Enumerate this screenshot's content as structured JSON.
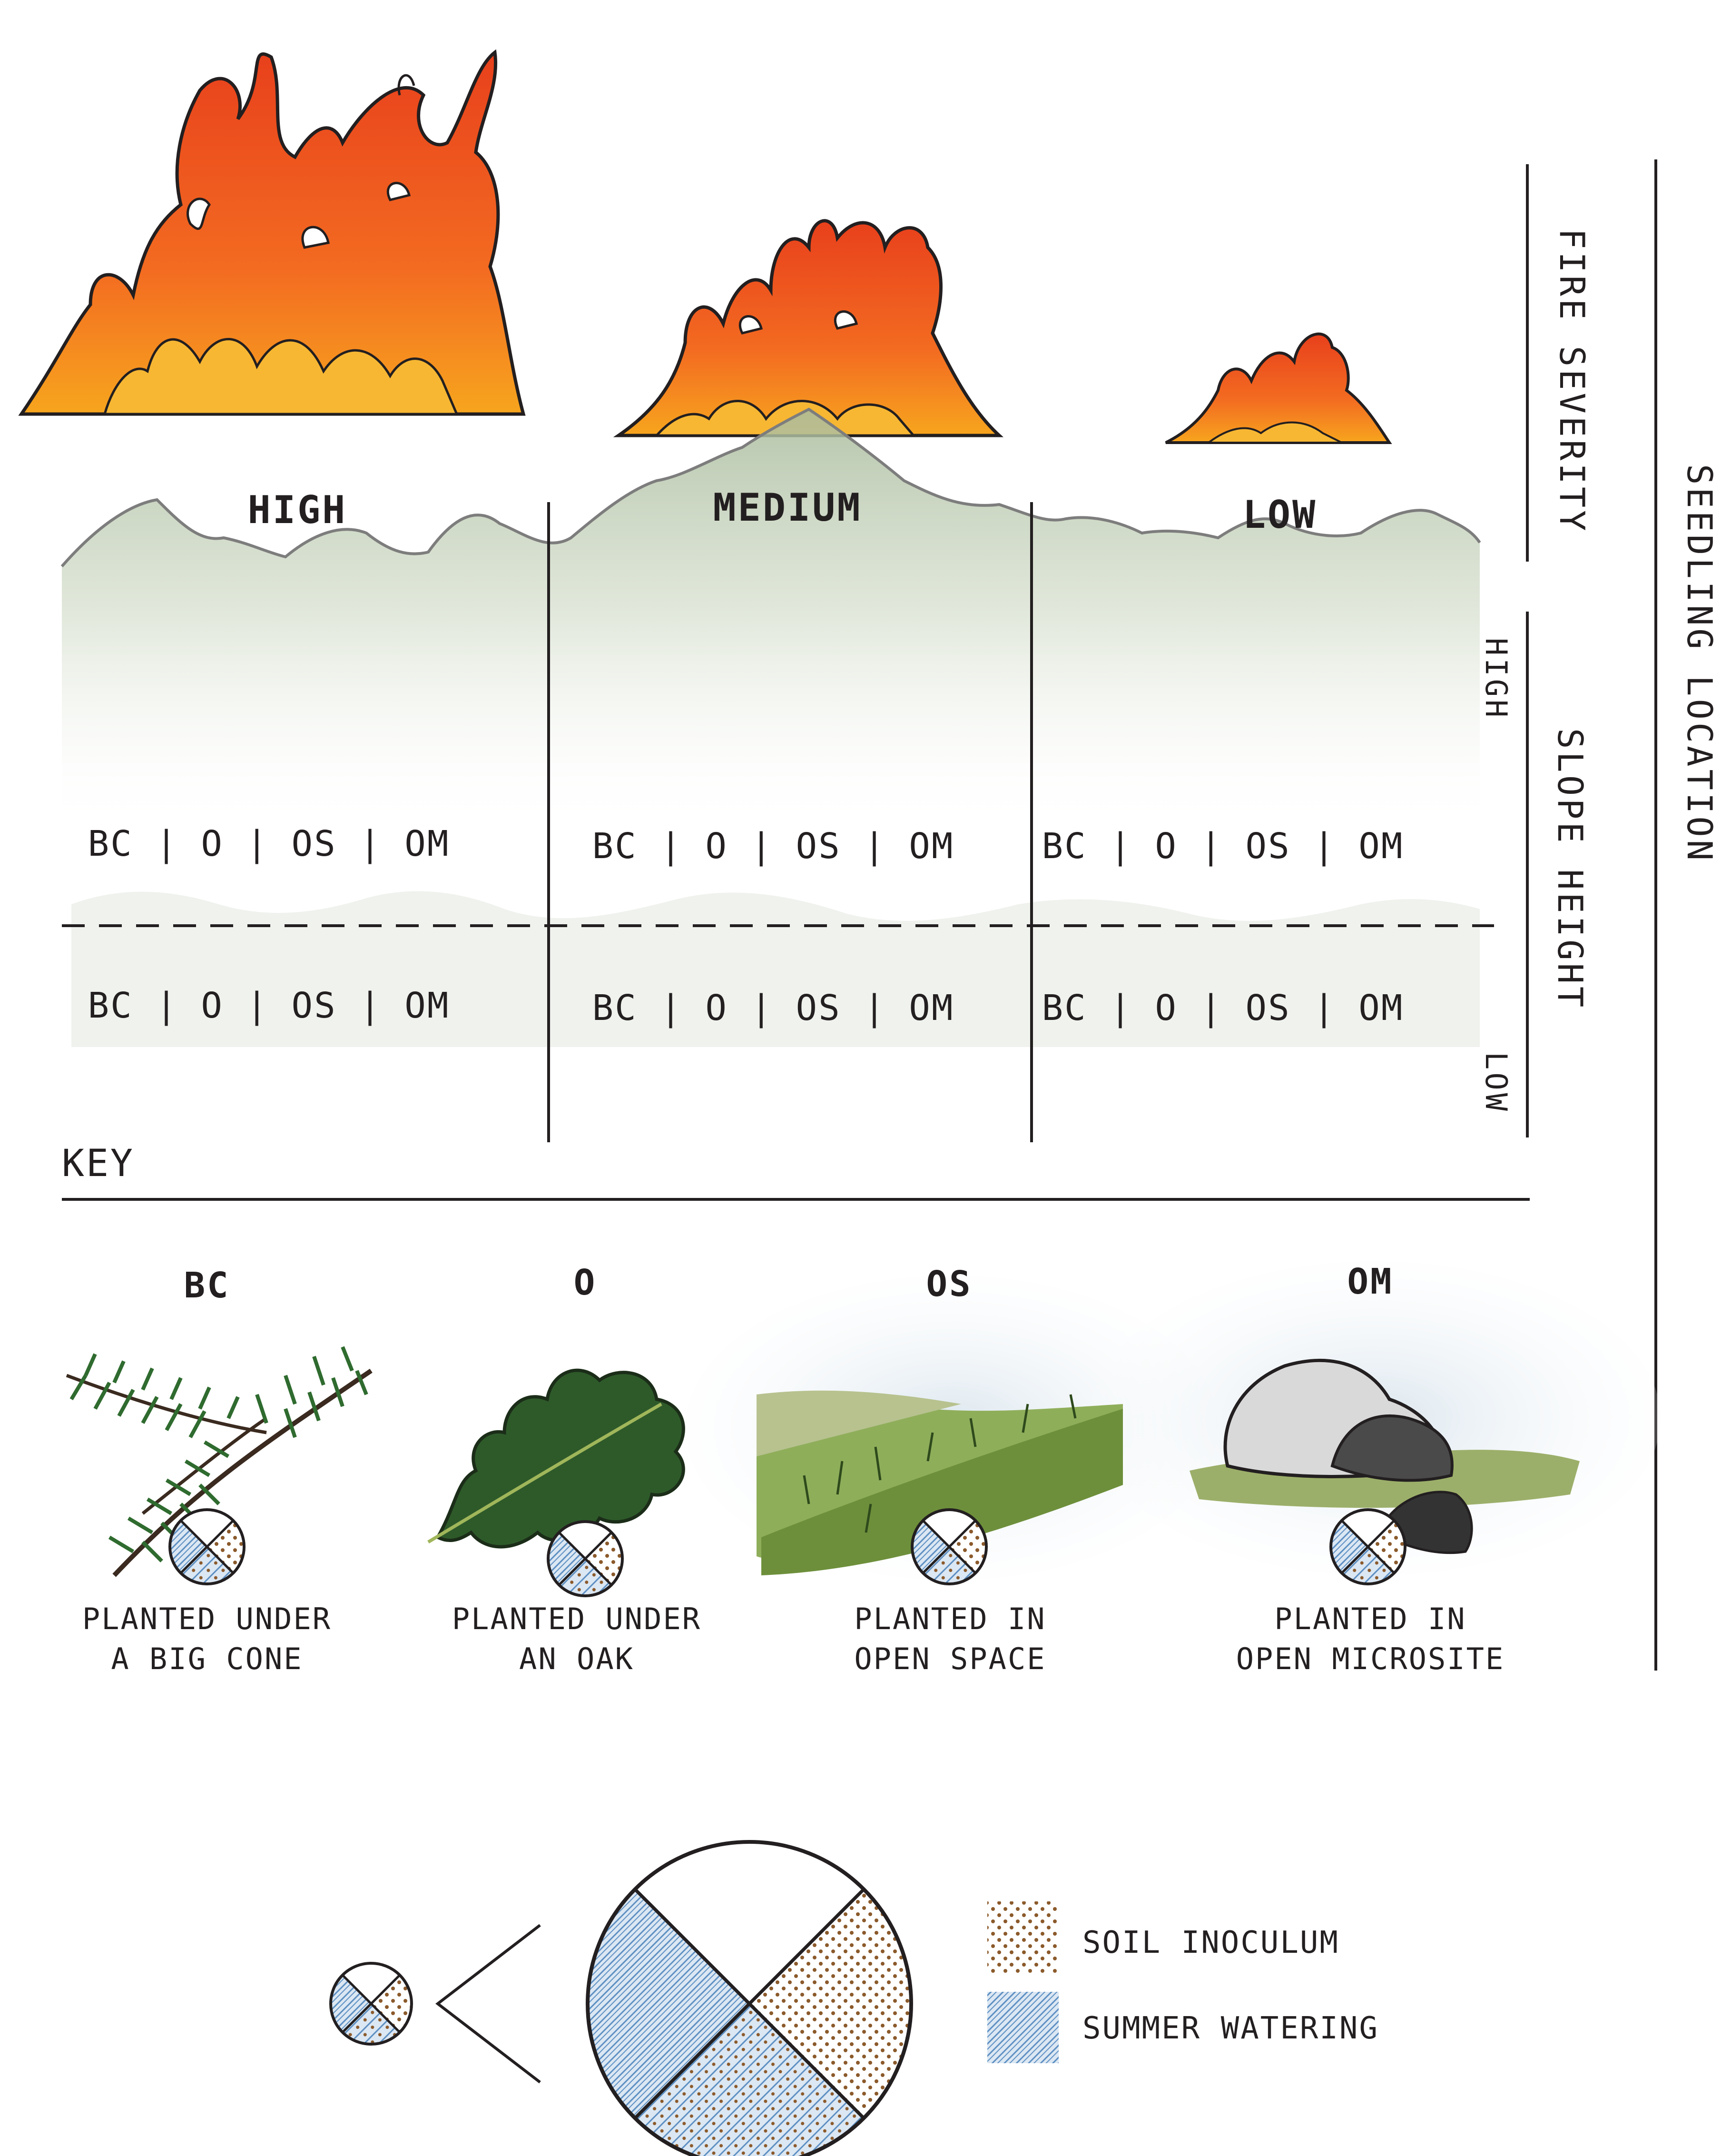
{
  "header": {
    "fire_severity_label": "FIRE SEVERITY",
    "seedling_location_label": "SEEDLING LOCATION",
    "slope_height_label": "SLOPE HEIGHT",
    "slope_high": "HIGH",
    "slope_low": "LOW"
  },
  "severity_levels": [
    "HIGH",
    "MEDIUM",
    "LOW"
  ],
  "grid": {
    "upper_row": [
      "BC | O | OS | OM",
      "BC | O | OS | OM",
      "BC | O | OS | OM"
    ],
    "lower_row": [
      "BC | O | OS | OM",
      "BC | O | OS | OM",
      "BC | O | OS | OM"
    ]
  },
  "key": {
    "title": "KEY",
    "items": [
      {
        "code": "BC",
        "description": "PLANTED UNDER\nA BIG CONE",
        "icon": "big-cone-branch-icon"
      },
      {
        "code": "O",
        "description": "PLANTED UNDER\nAN OAK",
        "icon": "oak-leaf-icon"
      },
      {
        "code": "OS",
        "description": "PLANTED IN\nOPEN SPACE",
        "icon": "open-space-grass-icon"
      },
      {
        "code": "OM",
        "description": "PLANTED IN\nOPEN MICROSITE",
        "icon": "boulder-icon"
      }
    ]
  },
  "legend": {
    "items": [
      {
        "label": "SOIL INOCULUM",
        "color": "#8b5a2b",
        "pattern": "dots"
      },
      {
        "label": "SUMMER WATERING",
        "color": "#6f9cc8",
        "pattern": "diagonal-lines"
      }
    ]
  },
  "colors": {
    "flame_outer": "#e8401c",
    "flame_inner": "#f7931e",
    "mountain": "#b9c8ae",
    "ink": "#231f20",
    "watering_blue": "#6f9cc8",
    "soil_brown": "#8b5a2b"
  }
}
